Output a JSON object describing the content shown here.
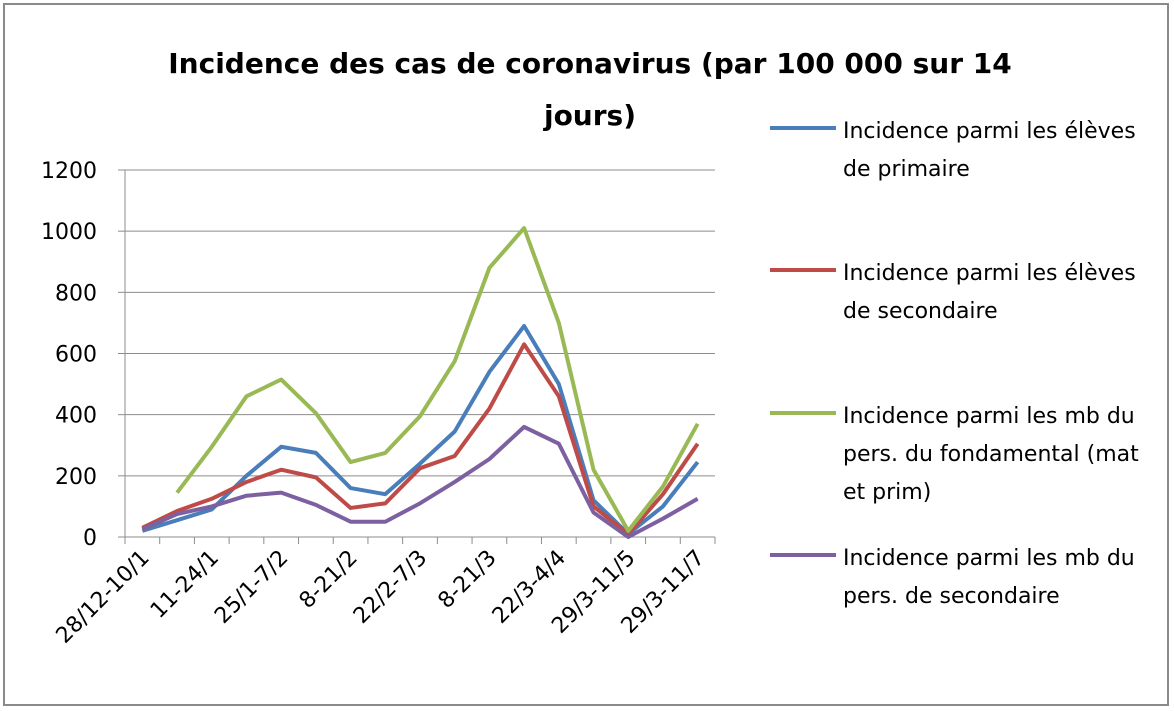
{
  "chart_data": {
    "type": "line",
    "title": "Incidence des cas de coronavirus (par 100 000 sur 14 jours)",
    "categories": [
      "28/12-10/1",
      null,
      "11-24/1",
      null,
      "25/1-7/2",
      null,
      "8-21/2",
      null,
      "22/2-7/3",
      null,
      "8-21/3",
      null,
      "22/3-4/4",
      null,
      "29/3-11/5",
      null,
      "29/3-11/7"
    ],
    "series": [
      {
        "name": "Incidence parmi les élèves de primaire",
        "color": "#4a7ebb",
        "values": [
          20,
          55,
          90,
          200,
          295,
          275,
          160,
          140,
          240,
          345,
          540,
          690,
          500,
          120,
          10,
          100,
          245
        ]
      },
      {
        "name": "Incidence parmi les élèves de secondaire",
        "color": "#be4b48",
        "values": [
          30,
          85,
          125,
          180,
          220,
          195,
          95,
          110,
          225,
          265,
          420,
          630,
          460,
          100,
          10,
          140,
          305
        ]
      },
      {
        "name": "Incidence parmi les mb du pers. du fondamental (mat et prim)",
        "color": "#98b954",
        "values": [
          null,
          145,
          295,
          460,
          515,
          405,
          245,
          275,
          395,
          575,
          880,
          1010,
          700,
          220,
          20,
          165,
          370
        ]
      },
      {
        "name": "Incidence parmi les mb du pers. de secondaire",
        "color": "#7d60a0",
        "values": [
          25,
          75,
          100,
          135,
          145,
          105,
          50,
          50,
          110,
          180,
          255,
          360,
          305,
          80,
          0,
          60,
          125
        ]
      }
    ],
    "ylim": [
      0,
      1200
    ],
    "yticks": [
      0,
      200,
      400,
      600,
      800,
      1000,
      1200
    ],
    "grid": true,
    "legend": "right"
  }
}
